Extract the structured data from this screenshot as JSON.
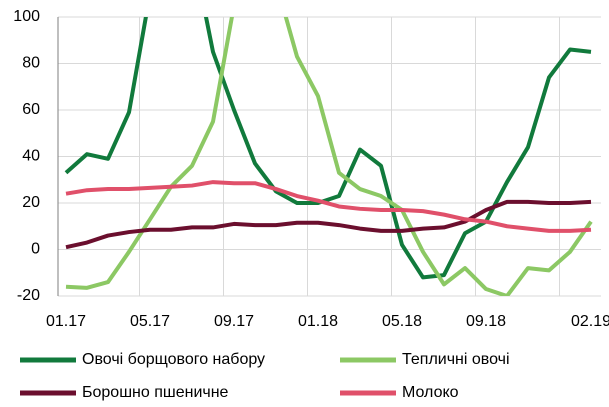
{
  "chart_data": {
    "type": "line",
    "categories": [
      "01.17",
      null,
      null,
      null,
      "05.17",
      null,
      null,
      null,
      "09.17",
      null,
      null,
      null,
      "01.18",
      null,
      null,
      null,
      "05.18",
      null,
      null,
      null,
      "09.18",
      null,
      null,
      null,
      null,
      "02.19"
    ],
    "series": [
      {
        "name": "Овочі борщового набору",
        "color": "#117a3c",
        "values": [
          33,
          41,
          39,
          59,
          110,
          130,
          130,
          85,
          60,
          37,
          25,
          20,
          20,
          23,
          43,
          36,
          2,
          -12,
          -11,
          7,
          12,
          29,
          44,
          74,
          86,
          85
        ]
      },
      {
        "name": "Тепличні овочі",
        "color": "#8cc864",
        "values": [
          -16,
          -16.5,
          -14,
          -1,
          13,
          27,
          36,
          55,
          105,
          130,
          115,
          83,
          66,
          33,
          26,
          23,
          17,
          -1,
          -15,
          -8,
          -17,
          -20,
          -8,
          -9,
          -1,
          12
        ]
      },
      {
        "name": "Борошно пшеничне",
        "color": "#6b0f2e",
        "values": [
          1,
          3,
          6,
          7.5,
          8.5,
          8.5,
          9.5,
          9.5,
          11,
          10.5,
          10.5,
          11.5,
          11.5,
          10.5,
          9,
          8,
          8,
          9,
          9.5,
          12,
          17,
          20.5,
          20.5,
          20,
          20,
          20.5
        ]
      },
      {
        "name": "Молоко",
        "color": "#e0506a",
        "values": [
          24,
          25.5,
          26,
          26,
          26.5,
          27,
          27.5,
          29,
          28.5,
          28.5,
          26,
          23,
          21,
          18.5,
          17.5,
          17,
          17,
          16.5,
          15,
          13,
          12,
          10,
          9,
          8,
          8,
          8.5
        ]
      }
    ],
    "ylim": [
      -20,
      100
    ],
    "yticks": [
      -20,
      0,
      20,
      40,
      60,
      80,
      100
    ],
    "grid": true
  }
}
